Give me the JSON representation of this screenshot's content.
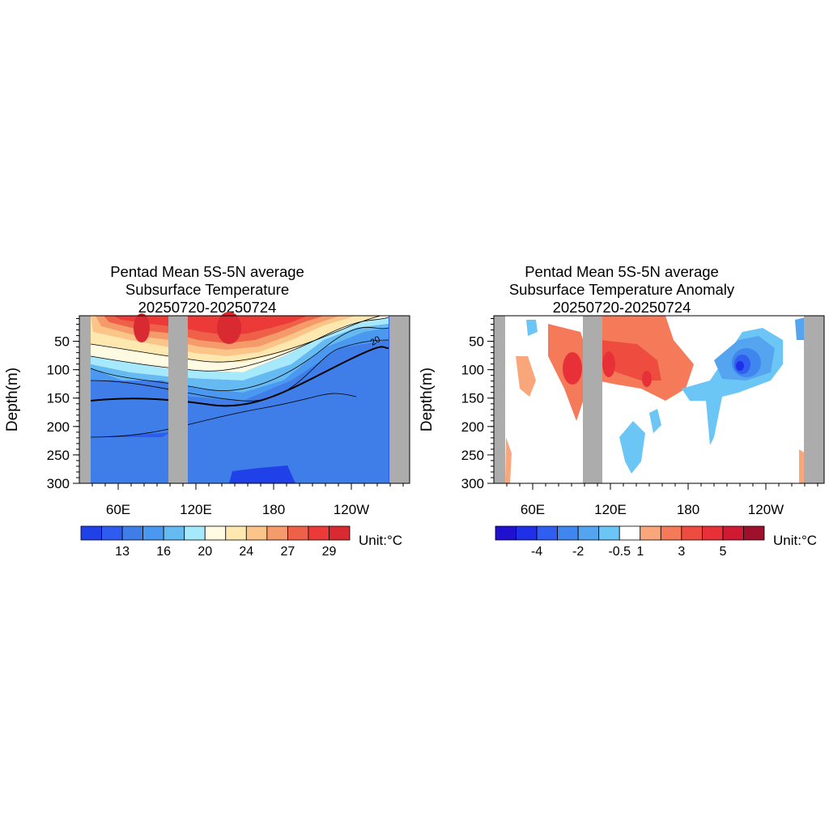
{
  "chart_data": [
    {
      "type": "heatmap",
      "title": [
        "Pentad Mean 5S-5N average",
        "Subsurface Temperature",
        "20250720-20250724"
      ],
      "ylabel": "Depth(m)",
      "xlabel": "",
      "x_ticks": [
        "60E",
        "120E",
        "180",
        "120W"
      ],
      "x_tick_lon": [
        60,
        120,
        180,
        240
      ],
      "xlim": [
        30,
        285
      ],
      "y_ticks": [
        50,
        100,
        150,
        200,
        250,
        300
      ],
      "ylim": [
        5,
        300
      ],
      "y_reversed": true,
      "contour_label": "20",
      "colorbar": {
        "colors": [
          "#2040e8",
          "#2f5cf0",
          "#3f7ee8",
          "#4a98f0",
          "#66baf2",
          "#a6e8fc",
          "#fffbe2",
          "#ffe8b0",
          "#fbc58a",
          "#f59a6b",
          "#ef6048",
          "#ec3a38",
          "#d82a30"
        ],
        "labels": [
          "13",
          "16",
          "20",
          "24",
          "27",
          "29"
        ],
        "label_edges": [
          2,
          4,
          6,
          8,
          10,
          12
        ]
      },
      "unit": "Unit:°C"
    },
    {
      "type": "heatmap",
      "title": [
        "Pentad Mean 5S-5N average",
        "Subsurface Temperature Anomaly",
        "20250720-20250724"
      ],
      "ylabel": "Depth(m)",
      "xlabel": "",
      "x_ticks": [
        "60E",
        "120E",
        "180",
        "120W"
      ],
      "x_tick_lon": [
        60,
        120,
        180,
        240
      ],
      "xlim": [
        30,
        285
      ],
      "y_ticks": [
        50,
        100,
        150,
        200,
        250,
        300
      ],
      "ylim": [
        5,
        300
      ],
      "y_reversed": true,
      "colorbar": {
        "colors": [
          "#2010d0",
          "#1f30e8",
          "#2f5ef0",
          "#3f86ee",
          "#54a4f0",
          "#6cc6f5",
          "#ffffff",
          "#f9a77a",
          "#f57a5a",
          "#ef4c40",
          "#e83038",
          "#d01a34",
          "#a0102c"
        ],
        "labels": [
          "-4",
          "-2",
          "-0.5",
          "1",
          "3",
          "5"
        ],
        "label_edges": [
          2,
          4,
          6,
          7,
          9,
          11
        ]
      },
      "unit": "Unit:°C"
    }
  ]
}
